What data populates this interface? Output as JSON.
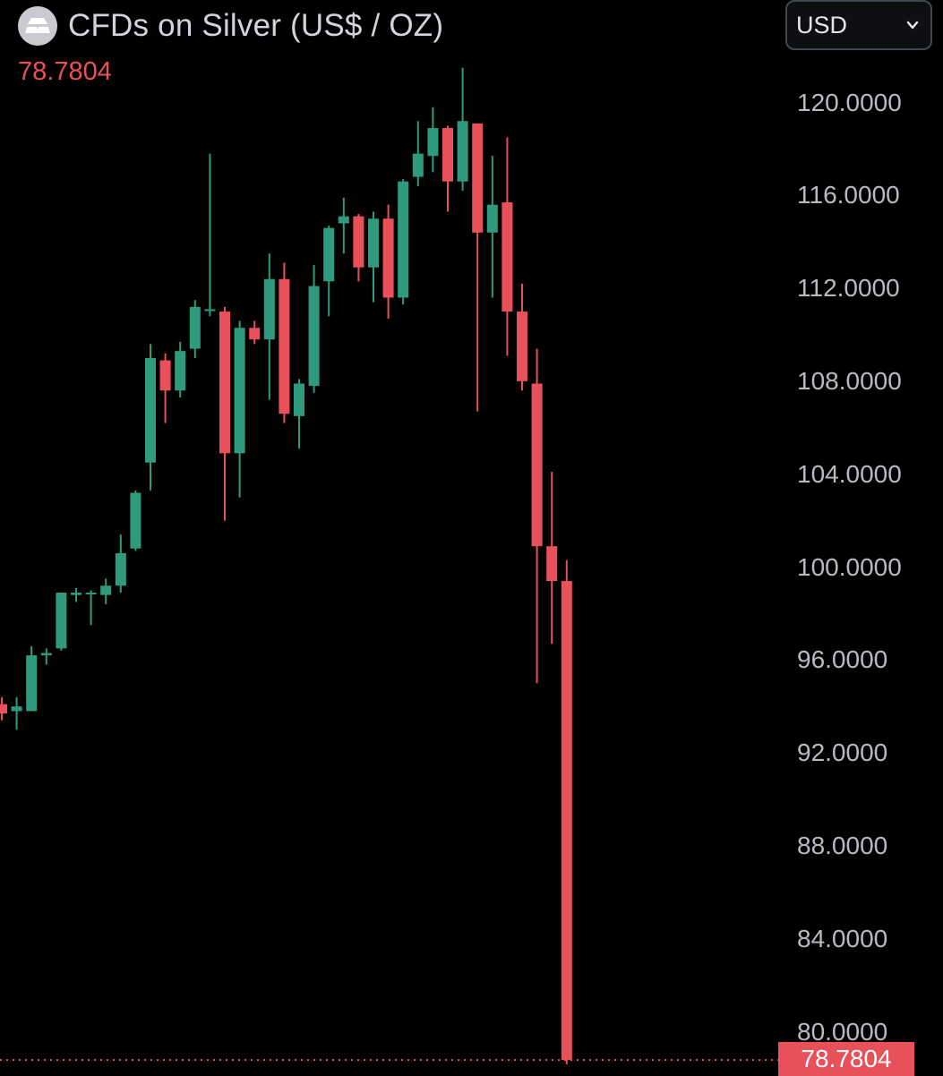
{
  "header": {
    "title": "CFDs on Silver (US$ / OZ)",
    "last_price": "78.7804",
    "logo_icon": "silver-bars-icon"
  },
  "currency_selector": {
    "label": "USD",
    "icon": "chevron-down-icon"
  },
  "price_tag": "78.7804",
  "colors": {
    "up": "#2f9a7e",
    "down": "#e9515a",
    "background": "#000000",
    "text": "#b8bac1"
  },
  "chart_data": {
    "type": "candlestick",
    "title": "CFDs on Silver (US$ / OZ)",
    "y_tick_labels": [
      "120.0000",
      "116.0000",
      "112.0000",
      "108.0000",
      "104.0000",
      "100.0000",
      "96.0000",
      "92.0000",
      "88.0000",
      "84.0000",
      "80.0000"
    ],
    "ylim": [
      78.1,
      122.4
    ],
    "last_price": 78.7804,
    "grid": false,
    "candles": [
      {
        "open": 94.1,
        "close": 93.7,
        "high": 94.4,
        "low": 93.4
      },
      {
        "open": 93.8,
        "close": 94.0,
        "high": 94.4,
        "low": 93.0
      },
      {
        "open": 93.8,
        "close": 96.2,
        "high": 96.6,
        "low": 93.8
      },
      {
        "open": 96.2,
        "close": 96.3,
        "high": 96.5,
        "low": 95.8
      },
      {
        "open": 96.5,
        "close": 98.9,
        "high": 98.9,
        "low": 96.4
      },
      {
        "open": 98.8,
        "close": 98.9,
        "high": 99.1,
        "low": 98.5
      },
      {
        "open": 98.9,
        "close": 98.9,
        "high": 99.0,
        "low": 97.5
      },
      {
        "open": 98.8,
        "close": 99.2,
        "high": 99.5,
        "low": 98.4
      },
      {
        "open": 99.2,
        "close": 100.6,
        "high": 101.4,
        "low": 98.9
      },
      {
        "open": 100.8,
        "close": 103.2,
        "high": 103.3,
        "low": 100.7
      },
      {
        "open": 104.5,
        "close": 109.0,
        "high": 109.6,
        "low": 103.3
      },
      {
        "open": 108.9,
        "close": 107.6,
        "high": 109.2,
        "low": 106.2
      },
      {
        "open": 107.6,
        "close": 109.3,
        "high": 109.7,
        "low": 107.3
      },
      {
        "open": 109.4,
        "close": 111.2,
        "high": 111.5,
        "low": 109.0
      },
      {
        "open": 111.1,
        "close": 111.1,
        "high": 117.8,
        "low": 110.8
      },
      {
        "open": 111.0,
        "close": 104.9,
        "high": 111.2,
        "low": 102.0
      },
      {
        "open": 104.9,
        "close": 110.3,
        "high": 110.6,
        "low": 103.0
      },
      {
        "open": 110.3,
        "close": 109.8,
        "high": 110.6,
        "low": 109.6
      },
      {
        "open": 109.8,
        "close": 112.4,
        "high": 113.5,
        "low": 107.2
      },
      {
        "open": 112.4,
        "close": 106.6,
        "high": 113.1,
        "low": 106.2
      },
      {
        "open": 106.5,
        "close": 107.9,
        "high": 108.1,
        "low": 105.1
      },
      {
        "open": 107.8,
        "close": 112.1,
        "high": 113.0,
        "low": 107.5
      },
      {
        "open": 112.3,
        "close": 114.6,
        "high": 114.7,
        "low": 110.8
      },
      {
        "open": 114.8,
        "close": 115.1,
        "high": 115.9,
        "low": 113.5
      },
      {
        "open": 115.1,
        "close": 112.9,
        "high": 115.2,
        "low": 112.3
      },
      {
        "open": 112.9,
        "close": 115.0,
        "high": 115.3,
        "low": 111.4
      },
      {
        "open": 115.0,
        "close": 111.6,
        "high": 115.6,
        "low": 110.7
      },
      {
        "open": 111.6,
        "close": 116.6,
        "high": 116.7,
        "low": 111.3
      },
      {
        "open": 116.8,
        "close": 117.8,
        "high": 119.2,
        "low": 116.4
      },
      {
        "open": 117.7,
        "close": 118.9,
        "high": 119.8,
        "low": 117.0
      },
      {
        "open": 118.9,
        "close": 116.6,
        "high": 119.0,
        "low": 115.3
      },
      {
        "open": 116.6,
        "close": 119.2,
        "high": 121.5,
        "low": 116.2
      },
      {
        "open": 119.1,
        "close": 114.4,
        "high": 119.1,
        "low": 106.7
      },
      {
        "open": 114.4,
        "close": 115.6,
        "high": 117.7,
        "low": 111.6
      },
      {
        "open": 115.7,
        "close": 111.0,
        "high": 118.5,
        "low": 109.1
      },
      {
        "open": 111.0,
        "close": 108.0,
        "high": 112.2,
        "low": 107.6
      },
      {
        "open": 107.9,
        "close": 100.9,
        "high": 109.4,
        "low": 95.0
      },
      {
        "open": 100.9,
        "close": 99.4,
        "high": 104.1,
        "low": 96.7
      },
      {
        "open": 99.4,
        "close": 78.78,
        "high": 100.3,
        "low": 78.6
      }
    ]
  }
}
